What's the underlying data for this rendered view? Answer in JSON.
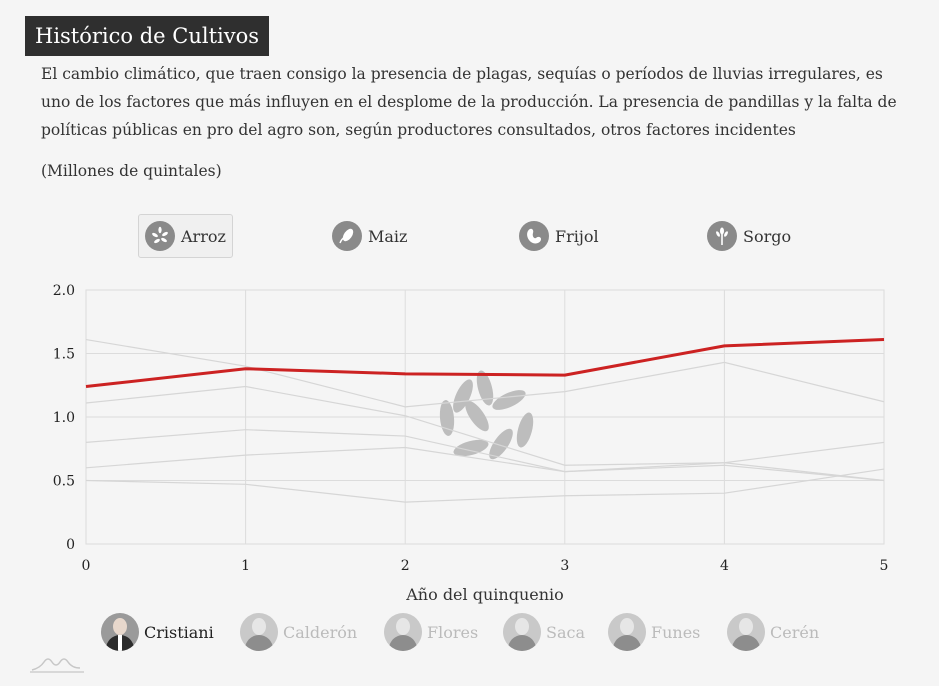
{
  "header": {
    "title": "Histórico de Cultivos",
    "intro": "El cambio climático, que traen consigo la presencia de plagas, sequías o períodos de lluvias irregulares, es uno de los factores que más influyen en el desplome de la producción. La presencia de pandillas y la falta de políticas públicas en pro del agro son, según productores consultados, otros factores incidentes",
    "unit": "(Millones de quintales)"
  },
  "tabs": [
    {
      "label": "Arroz",
      "icon": "rice-icon",
      "active": true
    },
    {
      "label": "Maiz",
      "icon": "corn-icon",
      "active": false
    },
    {
      "label": "Frijol",
      "icon": "bean-icon",
      "active": false
    },
    {
      "label": "Sorgo",
      "icon": "sorghum-icon",
      "active": false
    }
  ],
  "presidents": [
    {
      "name": "Cristiani",
      "active": true
    },
    {
      "name": "Calderón",
      "active": false
    },
    {
      "name": "Flores",
      "active": false
    },
    {
      "name": "Saca",
      "active": false
    },
    {
      "name": "Funes",
      "active": false
    },
    {
      "name": "Cerén",
      "active": false
    }
  ],
  "colors": {
    "highlight": "#cc2222",
    "background_lines": "#d6d6d6",
    "watermark": "#bdbdbd",
    "title_bg": "#2f2f2f"
  },
  "chart_data": {
    "type": "line",
    "xlabel": "Año del quinquenio",
    "ylabel": "",
    "x": [
      0,
      1,
      2,
      3,
      4,
      5
    ],
    "xlim": [
      0,
      5
    ],
    "ylim": [
      0,
      2.0
    ],
    "yticks": [
      0,
      0.5,
      1.0,
      1.5,
      2.0
    ],
    "ytick_labels": [
      "0",
      "0.5",
      "1.0",
      "1.5",
      "2.0"
    ],
    "xtick_labels": [
      "0",
      "1",
      "2",
      "3",
      "4",
      "5"
    ],
    "grid": true,
    "highlight_series": "Cristiani",
    "series": [
      {
        "name": "Cristiani",
        "values": [
          1.24,
          1.38,
          1.34,
          1.33,
          1.56,
          1.61
        ],
        "highlight": true
      },
      {
        "name": "Calderón",
        "values": [
          1.61,
          1.4,
          1.08,
          1.2,
          1.43,
          1.12
        ],
        "highlight": false
      },
      {
        "name": "Flores",
        "values": [
          1.11,
          1.24,
          1.01,
          0.62,
          0.64,
          0.5
        ],
        "highlight": false
      },
      {
        "name": "Saca",
        "values": [
          0.8,
          0.9,
          0.85,
          0.57,
          0.64,
          0.8
        ],
        "highlight": false
      },
      {
        "name": "Funes",
        "values": [
          0.6,
          0.7,
          0.76,
          0.57,
          0.62,
          0.5
        ],
        "highlight": false
      },
      {
        "name": "Cerén",
        "values": [
          0.5,
          0.47,
          0.33,
          0.38,
          0.4,
          0.59
        ],
        "highlight": false
      }
    ]
  }
}
